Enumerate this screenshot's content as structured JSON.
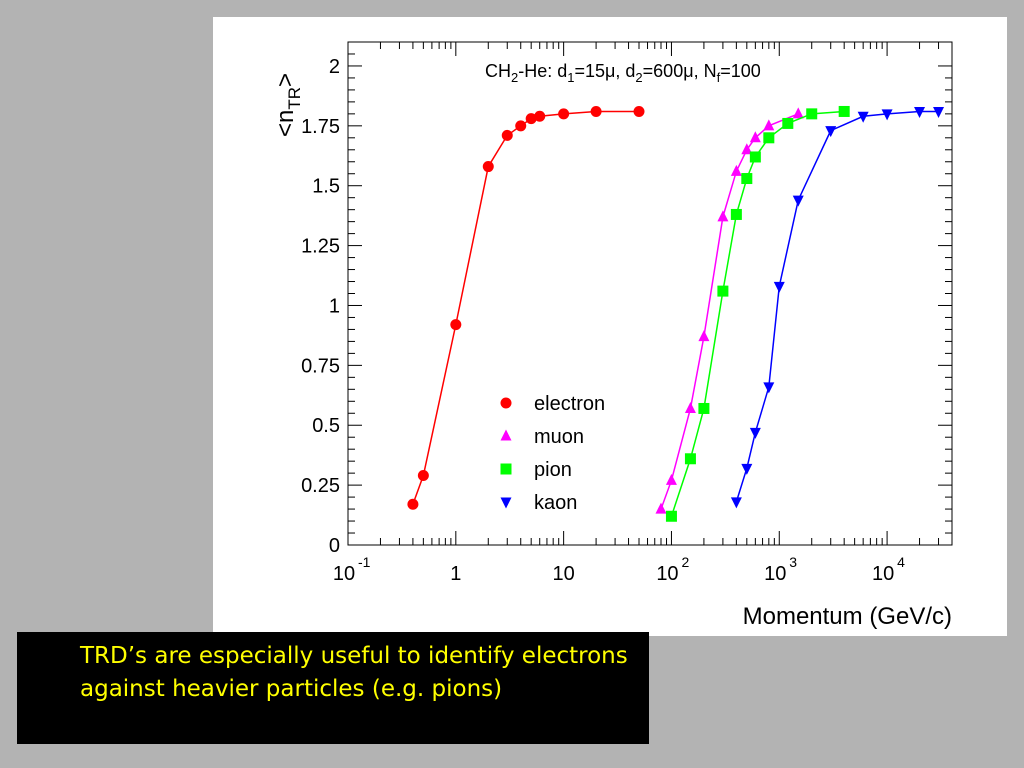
{
  "colors": {
    "background": "#b3b3b3",
    "caption_bg": "#000000",
    "caption_text": "#ffff00"
  },
  "caption": "TRD’s are especially useful to identify electrons against heavier particles (e.g. pions)",
  "chart_data": {
    "type": "line",
    "xscale": "log",
    "xlim": [
      0.1,
      40000
    ],
    "ylim": [
      0,
      2.1
    ],
    "xlabel": "Momentum (GeV/c)",
    "ylabel": {
      "base": "<n",
      "sub": "TR",
      "close": ">"
    },
    "annotation": {
      "segments": [
        {
          "t": "CH"
        },
        {
          "t": "2",
          "sub": true
        },
        {
          "t": "-He: d"
        },
        {
          "t": "1",
          "sub": true
        },
        {
          "t": "=15μ, d"
        },
        {
          "t": "2",
          "sub": true
        },
        {
          "t": "=600μ, N"
        },
        {
          "t": "f",
          "sub": true
        },
        {
          "t": "=100"
        }
      ]
    },
    "yticks": [
      "0",
      "0.25",
      "0.5",
      "0.75",
      "1",
      "1.25",
      "1.5",
      "1.75",
      "2"
    ],
    "ytick_values": [
      0,
      0.25,
      0.5,
      0.75,
      1,
      1.25,
      1.5,
      1.75,
      2
    ],
    "xticks": [
      {
        "value": 0.1,
        "base": "10",
        "exp": "-1"
      },
      {
        "value": 1,
        "base": "1",
        "exp": ""
      },
      {
        "value": 10,
        "base": "10",
        "exp": ""
      },
      {
        "value": 100,
        "base": "10",
        "exp": "2"
      },
      {
        "value": 1000,
        "base": "10",
        "exp": "3"
      },
      {
        "value": 10000,
        "base": "10",
        "exp": "4"
      }
    ],
    "legend_position": "center",
    "grid": false,
    "series": [
      {
        "name": "electron",
        "marker": "circle",
        "color": "#ff0000",
        "points": [
          [
            0.4,
            0.17
          ],
          [
            0.5,
            0.29
          ],
          [
            1,
            0.92
          ],
          [
            2,
            1.58
          ],
          [
            3,
            1.71
          ],
          [
            4,
            1.75
          ],
          [
            5,
            1.78
          ],
          [
            6,
            1.79
          ],
          [
            10,
            1.8
          ],
          [
            20,
            1.81
          ],
          [
            50,
            1.81
          ]
        ]
      },
      {
        "name": "muon",
        "marker": "triangle-up",
        "color": "#ff00ff",
        "points": [
          [
            80,
            0.15
          ],
          [
            100,
            0.27
          ],
          [
            150,
            0.57
          ],
          [
            200,
            0.87
          ],
          [
            300,
            1.37
          ],
          [
            400,
            1.56
          ],
          [
            500,
            1.65
          ],
          [
            600,
            1.7
          ],
          [
            800,
            1.75
          ],
          [
            1500,
            1.8
          ]
        ]
      },
      {
        "name": "pion",
        "marker": "square",
        "color": "#00ff00",
        "points": [
          [
            100,
            0.12
          ],
          [
            150,
            0.36
          ],
          [
            200,
            0.57
          ],
          [
            300,
            1.06
          ],
          [
            400,
            1.38
          ],
          [
            500,
            1.53
          ],
          [
            600,
            1.62
          ],
          [
            800,
            1.7
          ],
          [
            1200,
            1.76
          ],
          [
            2000,
            1.8
          ],
          [
            4000,
            1.81
          ]
        ]
      },
      {
        "name": "kaon",
        "marker": "triangle-down",
        "color": "#0000ff",
        "points": [
          [
            400,
            0.18
          ],
          [
            500,
            0.32
          ],
          [
            600,
            0.47
          ],
          [
            800,
            0.66
          ],
          [
            1000,
            1.08
          ],
          [
            1500,
            1.44
          ],
          [
            3000,
            1.73
          ],
          [
            6000,
            1.79
          ],
          [
            10000,
            1.8
          ],
          [
            20000,
            1.81
          ],
          [
            30000,
            1.81
          ]
        ]
      }
    ]
  }
}
